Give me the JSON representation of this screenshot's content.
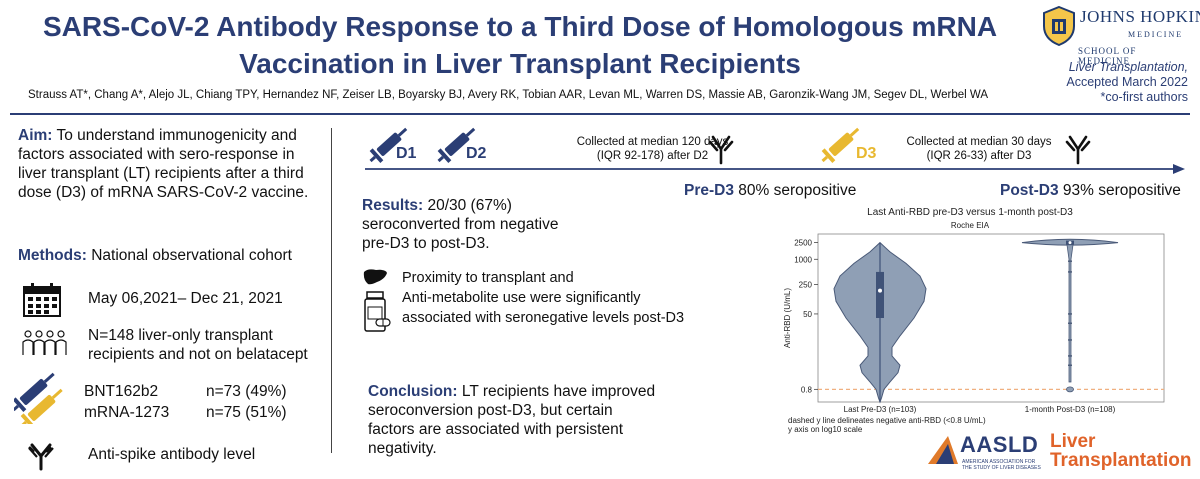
{
  "header": {
    "title_line1": "SARS-CoV-2 Antibody Response to a Third Dose of Homologous mRNA",
    "title_line2": "Vaccination in Liver Transplant Recipients",
    "authors": "Strauss AT*, Chang A*, Alejo JL, Chiang TPY, Hernandez NF, Zeiser LB, Boyarsky BJ, Avery RK, Tobian AAR, Levan ML, Warren DS, Massie AB, Garonzik-Wang JM, Segev DL, Werbel WA",
    "institution": {
      "name": "JOHNS HOPKINS",
      "sub": "MEDICINE",
      "school": "SCHOOL OF MEDICINE"
    },
    "journal": "Liver Transplantation,",
    "accepted": "Accepted March 2022",
    "cofirst": "*co-first authors"
  },
  "left": {
    "aim_label": "Aim:",
    "aim_text": " To understand immunogenicity and factors associated with sero-response in liver transplant (LT) recipients after a third dose (D3) of mRNA SARS-CoV-2 vaccine.",
    "methods_label": "Methods:",
    "methods_text": " National observational cohort",
    "dates": "May 06,2021– Dec 21, 2021",
    "population_line1": "N=148 liver-only transplant",
    "population_line2": "recipients and not on belatacept",
    "vaccine1_name": "BNT162b2",
    "vaccine1_n": "n=73 (49%)",
    "vaccine2_name": "mRNA-1273",
    "vaccine2_n": "n=75 (51%)",
    "antibody_label": "Anti-spike antibody level"
  },
  "timeline": {
    "d1": "D1",
    "d2": "D2",
    "d3": "D3",
    "collect1_line1": "Collected at median 120 days",
    "collect1_line2": "(IQR 92-178) after D2",
    "collect2_line1": "Collected at median 30 days",
    "collect2_line2": "(IQR 26-33) after D3",
    "pre_label": "Pre-D3",
    "pre_value": "80% seropositive",
    "post_label": "Post-D3",
    "post_value": "93% seropositive"
  },
  "results": {
    "label": "Results:",
    "line1": " 20/30 (67%)",
    "line2": "seroconverted from negative",
    "line3": "pre-D3 to post-D3.",
    "factor_line1": "Proximity to transplant and",
    "factor_line2": "Anti-metabolite use were significantly",
    "factor_line3": "associated with seronegative levels post-D3",
    "conclusion_label": "Conclusion:",
    "conclusion_line1": " LT recipients have improved",
    "conclusion_line2": "seroconversion post-D3, but certain",
    "conclusion_line3": "factors are associated with persistent",
    "conclusion_line4": "negativity."
  },
  "chart_data": {
    "type": "violin",
    "title": "Last Anti-RBD pre-D3 versus 1-month post-D3",
    "subtitle": "Roche EIA",
    "ylabel": "Anti-RBD (U/mL)",
    "yscale": "log10",
    "yticks": [
      0.8,
      50,
      250,
      1000,
      2500
    ],
    "ytick_labels": [
      "0.8",
      "50",
      "250",
      "1000",
      "2500"
    ],
    "ylim": [
      0.4,
      4000
    ],
    "categories": [
      "Last Pre-D3 (n=103)",
      "1-month Post-D3 (n=108)"
    ],
    "reference_line": 0.8,
    "series": [
      {
        "median": 180,
        "q1": 40,
        "q3": 500,
        "min": 0.4,
        "max": 2500
      },
      {
        "median": 2500,
        "q1": 2500,
        "q3": 2500,
        "min": 0.8,
        "max": 2500
      }
    ],
    "note_line1": "dashed y line delineates negative anti-RBD (<0.8 U/mL)",
    "note_line2": "y axis on log10 scale",
    "colors": {
      "violin": "#8f9fb5",
      "violin_edge": "#4a5a78",
      "box": "#3f5277",
      "ref": "#f0b080"
    }
  },
  "footer": {
    "aasld": "AASLD",
    "aasld_sub1": "AMERICAN ASSOCIATION FOR",
    "aasld_sub2": "THE STUDY OF LIVER DISEASES",
    "lt_line1": "Liver",
    "lt_line2": "Transplantation"
  }
}
